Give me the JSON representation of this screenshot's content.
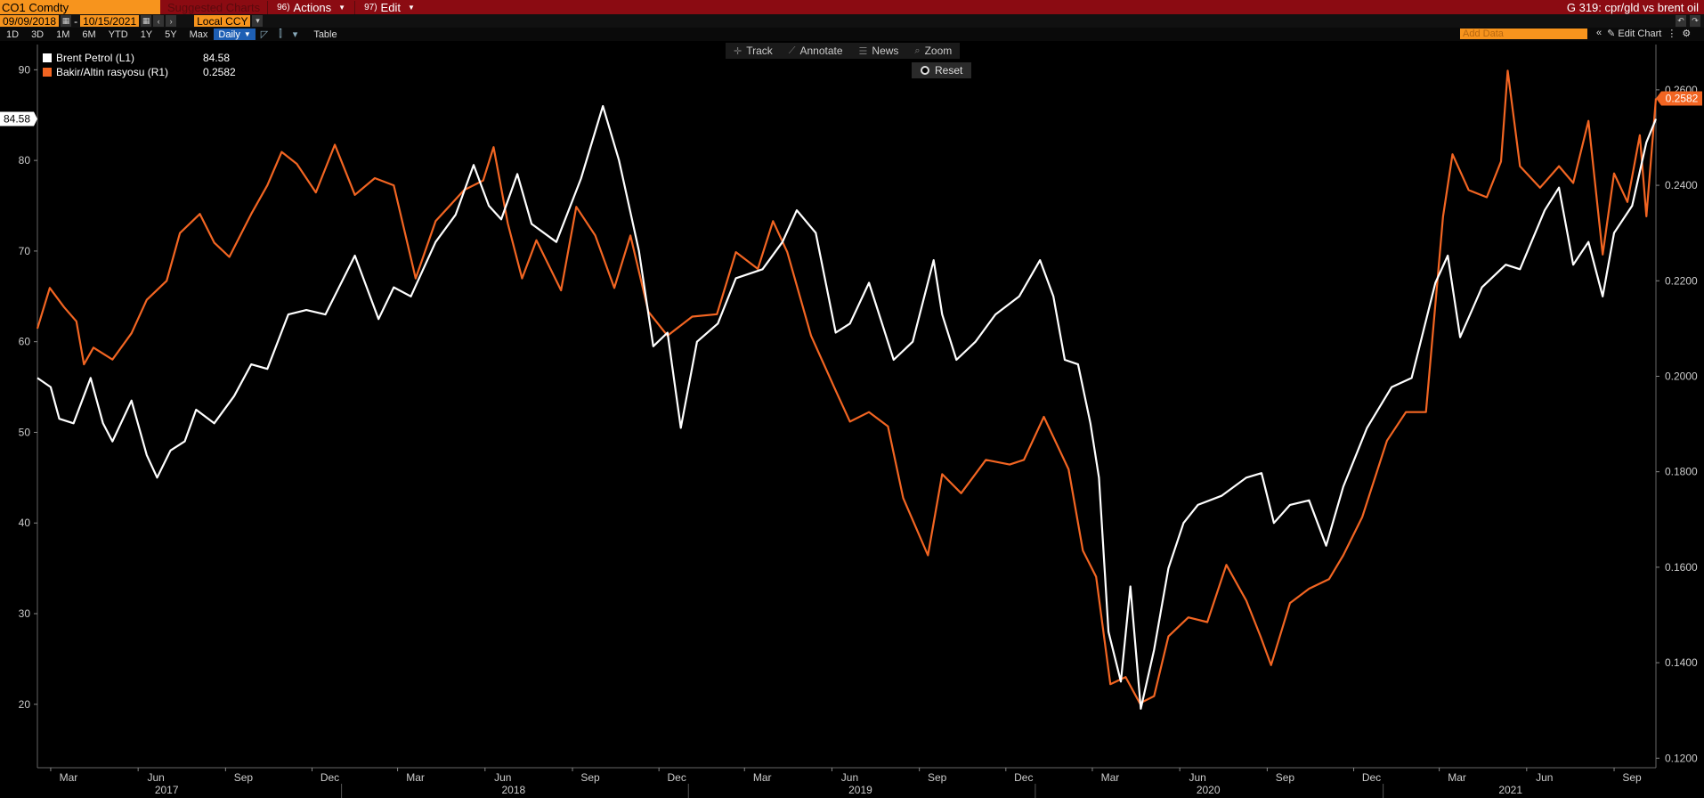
{
  "toolbar": {
    "security": "CO1 Comdty",
    "suggested_charts": "Suggested Charts",
    "actions_num": "96)",
    "actions_label": "Actions",
    "edit_num": "97)",
    "edit_label": "Edit",
    "graph_title": "G 319: cpr/gld vs brent oil"
  },
  "datebar": {
    "start_date": "09/09/2018",
    "end_date": "10/15/2021",
    "currency": "Local CCY"
  },
  "periodbar": {
    "periods": [
      "1D",
      "3D",
      "1M",
      "6M",
      "YTD",
      "1Y",
      "5Y",
      "Max"
    ],
    "frequency": "Daily",
    "table_label": "Table",
    "add_data_placeholder": "Add Data",
    "edit_chart_label": "Edit Chart"
  },
  "chart_tools": {
    "track": "Track",
    "annotate": "Annotate",
    "news": "News",
    "zoom": "Zoom",
    "reset": "Reset"
  },
  "colors": {
    "brent": "#ffffff",
    "ratio": "#f26522",
    "accent": "#f7941d",
    "topbar": "#8b0b12"
  },
  "chart_data": {
    "type": "line",
    "title": "",
    "x_range": [
      "2017-02-15",
      "2021-10-15"
    ],
    "y_left": {
      "min": 13,
      "max": 92,
      "ticks": [
        20,
        30,
        40,
        50,
        60,
        70,
        80,
        90
      ]
    },
    "y_right": {
      "min": 0.118,
      "max": 0.268,
      "ticks": [
        "0.1200",
        "0.1400",
        "0.1600",
        "0.1800",
        "0.2000",
        "0.2200",
        "0.2400",
        "0.2600"
      ]
    },
    "month_ticks": [
      {
        "date": "2017-03-01",
        "label": "Mar"
      },
      {
        "date": "2017-06-01",
        "label": "Jun"
      },
      {
        "date": "2017-09-01",
        "label": "Sep"
      },
      {
        "date": "2017-12-01",
        "label": "Dec"
      },
      {
        "date": "2018-03-01",
        "label": "Mar"
      },
      {
        "date": "2018-06-01",
        "label": "Jun"
      },
      {
        "date": "2018-09-01",
        "label": "Sep"
      },
      {
        "date": "2018-12-01",
        "label": "Dec"
      },
      {
        "date": "2019-03-01",
        "label": "Mar"
      },
      {
        "date": "2019-06-01",
        "label": "Jun"
      },
      {
        "date": "2019-09-01",
        "label": "Sep"
      },
      {
        "date": "2019-12-01",
        "label": "Dec"
      },
      {
        "date": "2020-03-01",
        "label": "Mar"
      },
      {
        "date": "2020-06-01",
        "label": "Jun"
      },
      {
        "date": "2020-09-01",
        "label": "Sep"
      },
      {
        "date": "2020-12-01",
        "label": "Dec"
      },
      {
        "date": "2021-03-01",
        "label": "Mar"
      },
      {
        "date": "2021-06-01",
        "label": "Jun"
      },
      {
        "date": "2021-09-01",
        "label": "Sep"
      }
    ],
    "year_labels": [
      {
        "date": "2017-07-01",
        "label": "2017"
      },
      {
        "date": "2018-07-01",
        "label": "2018"
      },
      {
        "date": "2019-07-01",
        "label": "2019"
      },
      {
        "date": "2020-07-01",
        "label": "2020"
      },
      {
        "date": "2021-05-15",
        "label": "2021"
      }
    ],
    "year_boundaries": [
      "2018-01-01",
      "2019-01-01",
      "2020-01-01",
      "2021-01-01"
    ],
    "series": [
      {
        "name": "Brent Petrol (L1)",
        "axis": "left",
        "last_value": "84.58",
        "points": [
          [
            "2017-02-15",
            56
          ],
          [
            "2017-03-01",
            55
          ],
          [
            "2017-03-10",
            51.5
          ],
          [
            "2017-03-25",
            51
          ],
          [
            "2017-04-12",
            56
          ],
          [
            "2017-04-25",
            51
          ],
          [
            "2017-05-05",
            49
          ],
          [
            "2017-05-25",
            53.5
          ],
          [
            "2017-06-10",
            47.5
          ],
          [
            "2017-06-21",
            45
          ],
          [
            "2017-07-05",
            48
          ],
          [
            "2017-07-20",
            49
          ],
          [
            "2017-08-01",
            52.5
          ],
          [
            "2017-08-20",
            51
          ],
          [
            "2017-09-10",
            54
          ],
          [
            "2017-09-28",
            57.5
          ],
          [
            "2017-10-15",
            57
          ],
          [
            "2017-11-06",
            63
          ],
          [
            "2017-11-25",
            63.5
          ],
          [
            "2017-12-15",
            63
          ],
          [
            "2018-01-15",
            69.5
          ],
          [
            "2018-02-09",
            62.5
          ],
          [
            "2018-02-25",
            66
          ],
          [
            "2018-03-15",
            65
          ],
          [
            "2018-04-10",
            71
          ],
          [
            "2018-05-01",
            74
          ],
          [
            "2018-05-20",
            79.5
          ],
          [
            "2018-06-05",
            75
          ],
          [
            "2018-06-18",
            73.5
          ],
          [
            "2018-07-05",
            78.5
          ],
          [
            "2018-07-20",
            73
          ],
          [
            "2018-08-15",
            71
          ],
          [
            "2018-09-10",
            78
          ],
          [
            "2018-10-03",
            86
          ],
          [
            "2018-10-20",
            80
          ],
          [
            "2018-11-10",
            70
          ],
          [
            "2018-11-25",
            59.5
          ],
          [
            "2018-12-10",
            61
          ],
          [
            "2018-12-24",
            50.5
          ],
          [
            "2019-01-10",
            60
          ],
          [
            "2019-02-01",
            62
          ],
          [
            "2019-02-20",
            67
          ],
          [
            "2019-03-20",
            68
          ],
          [
            "2019-04-10",
            71
          ],
          [
            "2019-04-25",
            74.5
          ],
          [
            "2019-05-15",
            72
          ],
          [
            "2019-06-05",
            61
          ],
          [
            "2019-06-20",
            62
          ],
          [
            "2019-07-10",
            66.5
          ],
          [
            "2019-08-05",
            58
          ],
          [
            "2019-08-25",
            60
          ],
          [
            "2019-09-16",
            69
          ],
          [
            "2019-09-25",
            63
          ],
          [
            "2019-10-10",
            58
          ],
          [
            "2019-10-30",
            60
          ],
          [
            "2019-11-20",
            63
          ],
          [
            "2019-12-15",
            65
          ],
          [
            "2020-01-06",
            69
          ],
          [
            "2020-01-20",
            65
          ],
          [
            "2020-02-01",
            58
          ],
          [
            "2020-02-15",
            57.5
          ],
          [
            "2020-02-28",
            51
          ],
          [
            "2020-03-08",
            45
          ],
          [
            "2020-03-18",
            28
          ],
          [
            "2020-03-31",
            22.5
          ],
          [
            "2020-04-10",
            33
          ],
          [
            "2020-04-21",
            19.5
          ],
          [
            "2020-05-05",
            26
          ],
          [
            "2020-05-20",
            35
          ],
          [
            "2020-06-05",
            40
          ],
          [
            "2020-06-20",
            42
          ],
          [
            "2020-07-15",
            43
          ],
          [
            "2020-08-10",
            45
          ],
          [
            "2020-08-26",
            45.5
          ],
          [
            "2020-09-08",
            40
          ],
          [
            "2020-09-25",
            42
          ],
          [
            "2020-10-15",
            42.5
          ],
          [
            "2020-11-02",
            37.5
          ],
          [
            "2020-11-20",
            44
          ],
          [
            "2020-12-15",
            50.5
          ],
          [
            "2021-01-10",
            55
          ],
          [
            "2021-01-31",
            56
          ],
          [
            "2021-02-25",
            66.5
          ],
          [
            "2021-03-10",
            69.5
          ],
          [
            "2021-03-23",
            60.5
          ],
          [
            "2021-04-15",
            66
          ],
          [
            "2021-05-10",
            68.5
          ],
          [
            "2021-05-25",
            68
          ],
          [
            "2021-06-20",
            74.5
          ],
          [
            "2021-07-05",
            77
          ],
          [
            "2021-07-20",
            68.5
          ],
          [
            "2021-08-05",
            71
          ],
          [
            "2021-08-20",
            65
          ],
          [
            "2021-09-01",
            72
          ],
          [
            "2021-09-20",
            75
          ],
          [
            "2021-10-05",
            82
          ],
          [
            "2021-10-15",
            84.58
          ]
        ]
      },
      {
        "name": "Bakir/Altin rasyosu (R1)",
        "axis": "right",
        "last_value": "0.2582",
        "points": [
          [
            "2017-02-15",
            0.21
          ],
          [
            "2017-02-28",
            0.2185
          ],
          [
            "2017-03-15",
            0.2145
          ],
          [
            "2017-03-28",
            0.2115
          ],
          [
            "2017-04-05",
            0.2025
          ],
          [
            "2017-04-15",
            0.206
          ],
          [
            "2017-05-05",
            0.2035
          ],
          [
            "2017-05-25",
            0.209
          ],
          [
            "2017-06-10",
            0.216
          ],
          [
            "2017-07-01",
            0.22
          ],
          [
            "2017-07-15",
            0.23
          ],
          [
            "2017-08-05",
            0.234
          ],
          [
            "2017-08-20",
            0.228
          ],
          [
            "2017-09-05",
            0.225
          ],
          [
            "2017-09-28",
            0.234
          ],
          [
            "2017-10-15",
            0.24
          ],
          [
            "2017-10-30",
            0.247
          ],
          [
            "2017-11-15",
            0.2445
          ],
          [
            "2017-12-05",
            0.2385
          ],
          [
            "2017-12-25",
            0.2485
          ],
          [
            "2018-01-15",
            0.238
          ],
          [
            "2018-02-05",
            0.2415
          ],
          [
            "2018-02-25",
            0.24
          ],
          [
            "2018-03-20",
            0.2205
          ],
          [
            "2018-04-10",
            0.2325
          ],
          [
            "2018-05-10",
            0.239
          ],
          [
            "2018-05-30",
            0.241
          ],
          [
            "2018-06-10",
            0.248
          ],
          [
            "2018-06-25",
            0.232
          ],
          [
            "2018-07-10",
            0.2205
          ],
          [
            "2018-07-25",
            0.2285
          ],
          [
            "2018-08-20",
            0.218
          ],
          [
            "2018-09-05",
            0.2355
          ],
          [
            "2018-09-25",
            0.2295
          ],
          [
            "2018-10-15",
            0.2185
          ],
          [
            "2018-11-01",
            0.2295
          ],
          [
            "2018-11-20",
            0.2135
          ],
          [
            "2018-12-10",
            0.2085
          ],
          [
            "2019-01-05",
            0.2125
          ],
          [
            "2019-01-31",
            0.213
          ],
          [
            "2019-02-20",
            0.226
          ],
          [
            "2019-03-15",
            0.2225
          ],
          [
            "2019-03-31",
            0.2325
          ],
          [
            "2019-04-15",
            0.226
          ],
          [
            "2019-05-10",
            0.2085
          ],
          [
            "2019-06-05",
            0.197
          ],
          [
            "2019-06-20",
            0.1905
          ],
          [
            "2019-07-10",
            0.1925
          ],
          [
            "2019-07-30",
            0.1895
          ],
          [
            "2019-08-15",
            0.1745
          ],
          [
            "2019-09-10",
            0.1625
          ],
          [
            "2019-09-25",
            0.1795
          ],
          [
            "2019-10-15",
            0.1755
          ],
          [
            "2019-11-10",
            0.1825
          ],
          [
            "2019-12-05",
            0.1815
          ],
          [
            "2019-12-20",
            0.1825
          ],
          [
            "2020-01-10",
            0.1915
          ],
          [
            "2020-02-05",
            0.1805
          ],
          [
            "2020-02-20",
            0.1635
          ],
          [
            "2020-03-05",
            0.158
          ],
          [
            "2020-03-20",
            0.1355
          ],
          [
            "2020-04-05",
            0.137
          ],
          [
            "2020-04-20",
            0.1315
          ],
          [
            "2020-05-05",
            0.133
          ],
          [
            "2020-05-20",
            0.1455
          ],
          [
            "2020-06-10",
            0.1495
          ],
          [
            "2020-06-30",
            0.1485
          ],
          [
            "2020-07-20",
            0.1605
          ],
          [
            "2020-08-10",
            0.153
          ],
          [
            "2020-08-25",
            0.1455
          ],
          [
            "2020-09-05",
            0.1395
          ],
          [
            "2020-09-25",
            0.1525
          ],
          [
            "2020-10-15",
            0.1555
          ],
          [
            "2020-11-05",
            0.1575
          ],
          [
            "2020-11-20",
            0.1625
          ],
          [
            "2020-12-10",
            0.1705
          ],
          [
            "2021-01-05",
            0.1865
          ],
          [
            "2021-01-25",
            0.1925
          ],
          [
            "2021-02-15",
            0.1925
          ],
          [
            "2021-03-05",
            0.2335
          ],
          [
            "2021-03-15",
            0.2465
          ],
          [
            "2021-04-01",
            0.239
          ],
          [
            "2021-04-20",
            0.2375
          ],
          [
            "2021-05-05",
            0.245
          ],
          [
            "2021-05-12",
            0.264
          ],
          [
            "2021-05-25",
            0.244
          ],
          [
            "2021-06-15",
            0.2395
          ],
          [
            "2021-07-05",
            0.244
          ],
          [
            "2021-07-20",
            0.2405
          ],
          [
            "2021-08-05",
            0.2535
          ],
          [
            "2021-08-20",
            0.2255
          ],
          [
            "2021-09-01",
            0.2425
          ],
          [
            "2021-09-15",
            0.2365
          ],
          [
            "2021-09-28",
            0.2505
          ],
          [
            "2021-10-05",
            0.2335
          ],
          [
            "2021-10-15",
            0.2582
          ]
        ]
      }
    ]
  }
}
